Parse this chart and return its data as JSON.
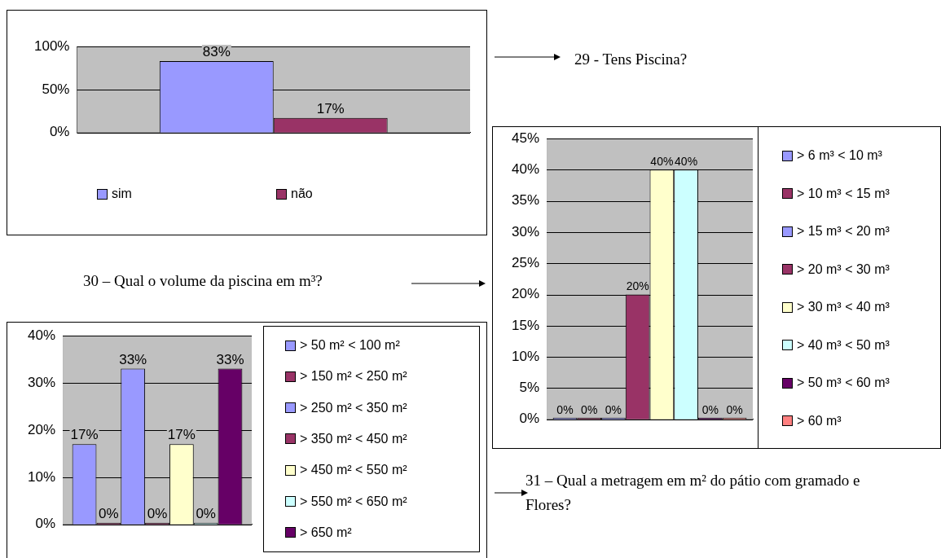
{
  "chart_data": [
    {
      "type": "bar",
      "categories": [
        null
      ],
      "series": [
        {
          "name": "sim",
          "color": "#9999ff",
          "values": [
            83
          ],
          "value_labels": [
            "83%"
          ]
        },
        {
          "name": "não",
          "color": "#993366",
          "values": [
            17
          ],
          "value_labels": [
            "17%"
          ]
        }
      ],
      "ylim": [
        0,
        100
      ],
      "yticks": [
        {
          "value": 0,
          "label": "0%"
        },
        {
          "value": 50,
          "label": "50%"
        },
        {
          "value": 100,
          "label": "100%"
        }
      ],
      "grid": "y",
      "legend": "bottom",
      "annotations": [
        "29 - Tens Piscina?"
      ]
    },
    {
      "type": "bar",
      "categories": [
        null
      ],
      "series": [
        {
          "name": "> 6 m³ < 10 m³",
          "color": "#9999ff",
          "values": [
            0
          ],
          "value_labels": [
            "0%"
          ]
        },
        {
          "name": "> 10 m³ < 15 m³",
          "color": "#993366",
          "values": [
            0
          ],
          "value_labels": [
            "0%"
          ]
        },
        {
          "name": "> 15 m³ < 20 m³",
          "color": "#9999ff",
          "values": [
            0
          ],
          "value_labels": [
            "0%"
          ]
        },
        {
          "name": "> 20 m³ < 30 m³",
          "color": "#993366",
          "values": [
            20
          ],
          "value_labels": [
            "20%"
          ]
        },
        {
          "name": "> 30 m³ < 40 m³",
          "color": "#ffffcc",
          "values": [
            40
          ],
          "value_labels": [
            "40%"
          ]
        },
        {
          "name": "> 40 m³ < 50 m³",
          "color": "#ccffff",
          "values": [
            40
          ],
          "value_labels": [
            "40%"
          ]
        },
        {
          "name": "> 50 m³ < 60 m³",
          "color": "#660066",
          "values": [
            0
          ],
          "value_labels": [
            "0%"
          ]
        },
        {
          "name": "> 60 m³",
          "color": "#ff8080",
          "values": [
            0
          ],
          "value_labels": [
            "0%"
          ]
        }
      ],
      "ylim": [
        0,
        45
      ],
      "yticks": [
        {
          "value": 0,
          "label": "0%"
        },
        {
          "value": 5,
          "label": "5%"
        },
        {
          "value": 10,
          "label": "10%"
        },
        {
          "value": 15,
          "label": "15%"
        },
        {
          "value": 20,
          "label": "20%"
        },
        {
          "value": 25,
          "label": "25%"
        },
        {
          "value": 30,
          "label": "30%"
        },
        {
          "value": 35,
          "label": "35%"
        },
        {
          "value": 40,
          "label": "40%"
        },
        {
          "value": 45,
          "label": "45%"
        }
      ],
      "grid": "y",
      "legend": "right",
      "annotations": [
        "30 – Qual o volume da piscina em m³?"
      ]
    },
    {
      "type": "bar",
      "categories": [
        null
      ],
      "series": [
        {
          "name": "> 50 m² < 100 m²",
          "color": "#9999ff",
          "values": [
            17
          ],
          "value_labels": [
            "17%"
          ]
        },
        {
          "name": "> 150 m² < 250 m²",
          "color": "#993366",
          "values": [
            0
          ],
          "value_labels": [
            "0%"
          ]
        },
        {
          "name": "> 250 m² < 350 m²",
          "color": "#9999ff",
          "values": [
            33
          ],
          "value_labels": [
            "33%"
          ]
        },
        {
          "name": "> 350 m² < 450 m²",
          "color": "#993366",
          "values": [
            0
          ],
          "value_labels": [
            "0%"
          ]
        },
        {
          "name": "> 450 m² < 550 m²",
          "color": "#ffffcc",
          "values": [
            17
          ],
          "value_labels": [
            "17%"
          ]
        },
        {
          "name": "> 550 m² < 650 m²",
          "color": "#ccffff",
          "values": [
            0
          ],
          "value_labels": [
            "0%"
          ]
        },
        {
          "name": "> 650 m²",
          "color": "#660066",
          "values": [
            33
          ],
          "value_labels": [
            "33%"
          ]
        }
      ],
      "ylim": [
        0,
        40
      ],
      "yticks": [
        {
          "value": 0,
          "label": "0%"
        },
        {
          "value": 10,
          "label": "10%"
        },
        {
          "value": 20,
          "label": "20%"
        },
        {
          "value": 30,
          "label": "30%"
        },
        {
          "value": 40,
          "label": "40%"
        }
      ],
      "grid": "y",
      "legend": "right",
      "annotations": [
        "31 – Qual a metragem em m² do pátio com gramado e Flores?"
      ]
    }
  ]
}
